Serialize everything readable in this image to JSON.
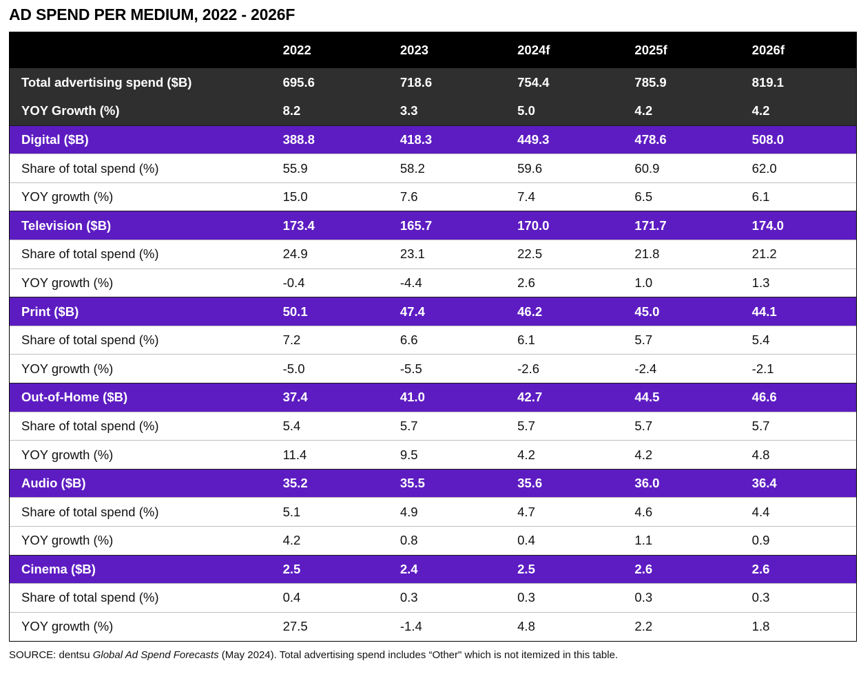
{
  "title": "AD SPEND PER MEDIUM, 2022 - 2026F",
  "columns": [
    "",
    "2022",
    "2023",
    "2024f",
    "2025f",
    "2026f"
  ],
  "total": {
    "label": "Total advertising spend ($B)",
    "values": [
      "695.6",
      "718.6",
      "754.4",
      "785.9",
      "819.1"
    ]
  },
  "total_yoy": {
    "label": "YOY Growth (%)",
    "values": [
      "8.2",
      "3.3",
      "5.0",
      "4.2",
      "4.2"
    ]
  },
  "share_label": "Share of total spend (%)",
  "yoy_label": "YOY growth (%)",
  "media": [
    {
      "name": "Digital ($B)",
      "values": [
        "388.8",
        "418.3",
        "449.3",
        "478.6",
        "508.0"
      ],
      "share": [
        "55.9",
        "58.2",
        "59.6",
        "60.9",
        "62.0"
      ],
      "yoy": [
        "15.0",
        "7.6",
        "7.4",
        "6.5",
        "6.1"
      ]
    },
    {
      "name": "Television ($B)",
      "values": [
        "173.4",
        "165.7",
        "170.0",
        "171.7",
        "174.0"
      ],
      "share": [
        "24.9",
        "23.1",
        "22.5",
        "21.8",
        "21.2"
      ],
      "yoy": [
        "-0.4",
        "-4.4",
        "2.6",
        "1.0",
        "1.3"
      ]
    },
    {
      "name": "Print ($B)",
      "values": [
        "50.1",
        "47.4",
        "46.2",
        "45.0",
        "44.1"
      ],
      "share": [
        "7.2",
        "6.6",
        "6.1",
        "5.7",
        "5.4"
      ],
      "yoy": [
        "-5.0",
        "-5.5",
        "-2.6",
        "-2.4",
        "-2.1"
      ]
    },
    {
      "name": "Out-of-Home ($B)",
      "values": [
        "37.4",
        "41.0",
        "42.7",
        "44.5",
        "46.6"
      ],
      "share": [
        "5.4",
        "5.7",
        "5.7",
        "5.7",
        "5.7"
      ],
      "yoy": [
        "11.4",
        "9.5",
        "4.2",
        "4.2",
        "4.8"
      ]
    },
    {
      "name": "Audio ($B)",
      "values": [
        "35.2",
        "35.5",
        "35.6",
        "36.0",
        "36.4"
      ],
      "share": [
        "5.1",
        "4.9",
        "4.7",
        "4.6",
        "4.4"
      ],
      "yoy": [
        "4.2",
        "0.8",
        "0.4",
        "1.1",
        "0.9"
      ]
    },
    {
      "name": "Cinema ($B)",
      "values": [
        "2.5",
        "2.4",
        "2.5",
        "2.6",
        "2.6"
      ],
      "share": [
        "0.4",
        "0.3",
        "0.3",
        "0.3",
        "0.3"
      ],
      "yoy": [
        "27.5",
        "-1.4",
        "4.8",
        "2.2",
        "1.8"
      ]
    }
  ],
  "source": {
    "prefix": "SOURCE: dentsu ",
    "italic": "Global Ad Spend Forecasts",
    "suffix": " (May 2024). Total advertising spend includes “Other\" which is not itemized in this table."
  },
  "colors": {
    "header_bg": "#000000",
    "total_bg": "#2f2f2f",
    "medium_bg": "#5d1cc2",
    "row_bg": "#ffffff"
  }
}
